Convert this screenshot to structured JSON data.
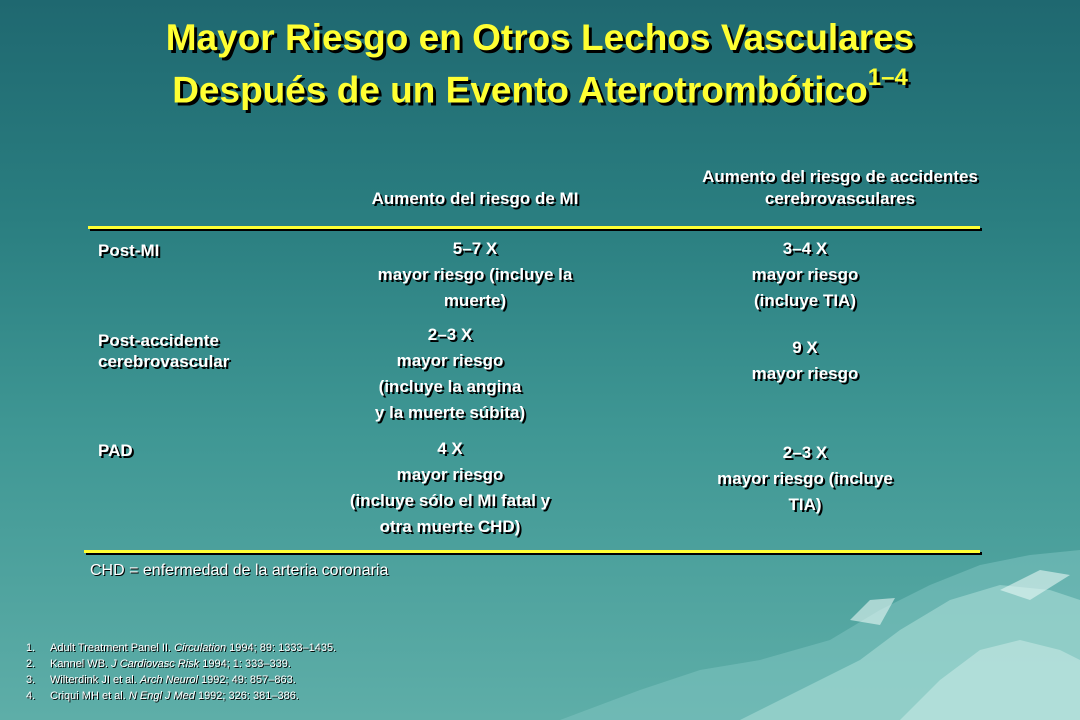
{
  "title": {
    "line1": "Mayor Riesgo en Otros Lechos Vasculares",
    "line2": "Después de un Evento Aterotrombótico",
    "superscript": "1–4"
  },
  "table": {
    "col1_header": "Aumento del riesgo de MI",
    "col2_header_line1": "Aumento del riesgo de accidentes",
    "col2_header_line2": "cerebrovasculares",
    "rows": [
      {
        "label_line1": "Post-MI",
        "label_line2": "",
        "c1": [
          "5–7 X",
          "mayor riesgo (incluye la",
          "muerte)"
        ],
        "c2": [
          "3–4 X",
          "mayor riesgo",
          "(incluye  TIA)"
        ]
      },
      {
        "label_line1": "Post-accidente",
        "label_line2": "cerebrovascular",
        "c1": [
          "2–3 X",
          "mayor riesgo",
          "(incluye la angina",
          "y la muerte súbita)"
        ],
        "c2": [
          "9 X",
          "mayor riesgo"
        ]
      },
      {
        "label_line1": "PAD",
        "label_line2": "",
        "c1": [
          "4 X",
          "mayor riesgo",
          "(incluye sólo el MI fatal y",
          "otra muerte CHD)"
        ],
        "c2": [
          "2–3 X",
          "mayor riesgo (incluye",
          "TIA)"
        ]
      }
    ]
  },
  "footnote": "CHD = enfermedad de la arteria coronaria",
  "references": [
    {
      "num": "1.",
      "pre": "Adult Treatment Panel II. ",
      "journal": "Circulation",
      "post": " 1994; 89: 1333–1435."
    },
    {
      "num": "2.",
      "pre": "Kannel WB. ",
      "journal": "J Cardiovasc Risk",
      "post": " 1994; 1: 333–339."
    },
    {
      "num": "3.",
      "pre": "Wilterdink JI et al. ",
      "journal": "Arch Neurol",
      "post": " 1992; 49: 857–863."
    },
    {
      "num": "4.",
      "pre": "Criqui MH et al. ",
      "journal": "N Engl J Med",
      "post": " 1992; 326: 381–386."
    }
  ],
  "colors": {
    "accent": "#ffff33",
    "background": "#2a7e80",
    "text": "#ffffff"
  }
}
